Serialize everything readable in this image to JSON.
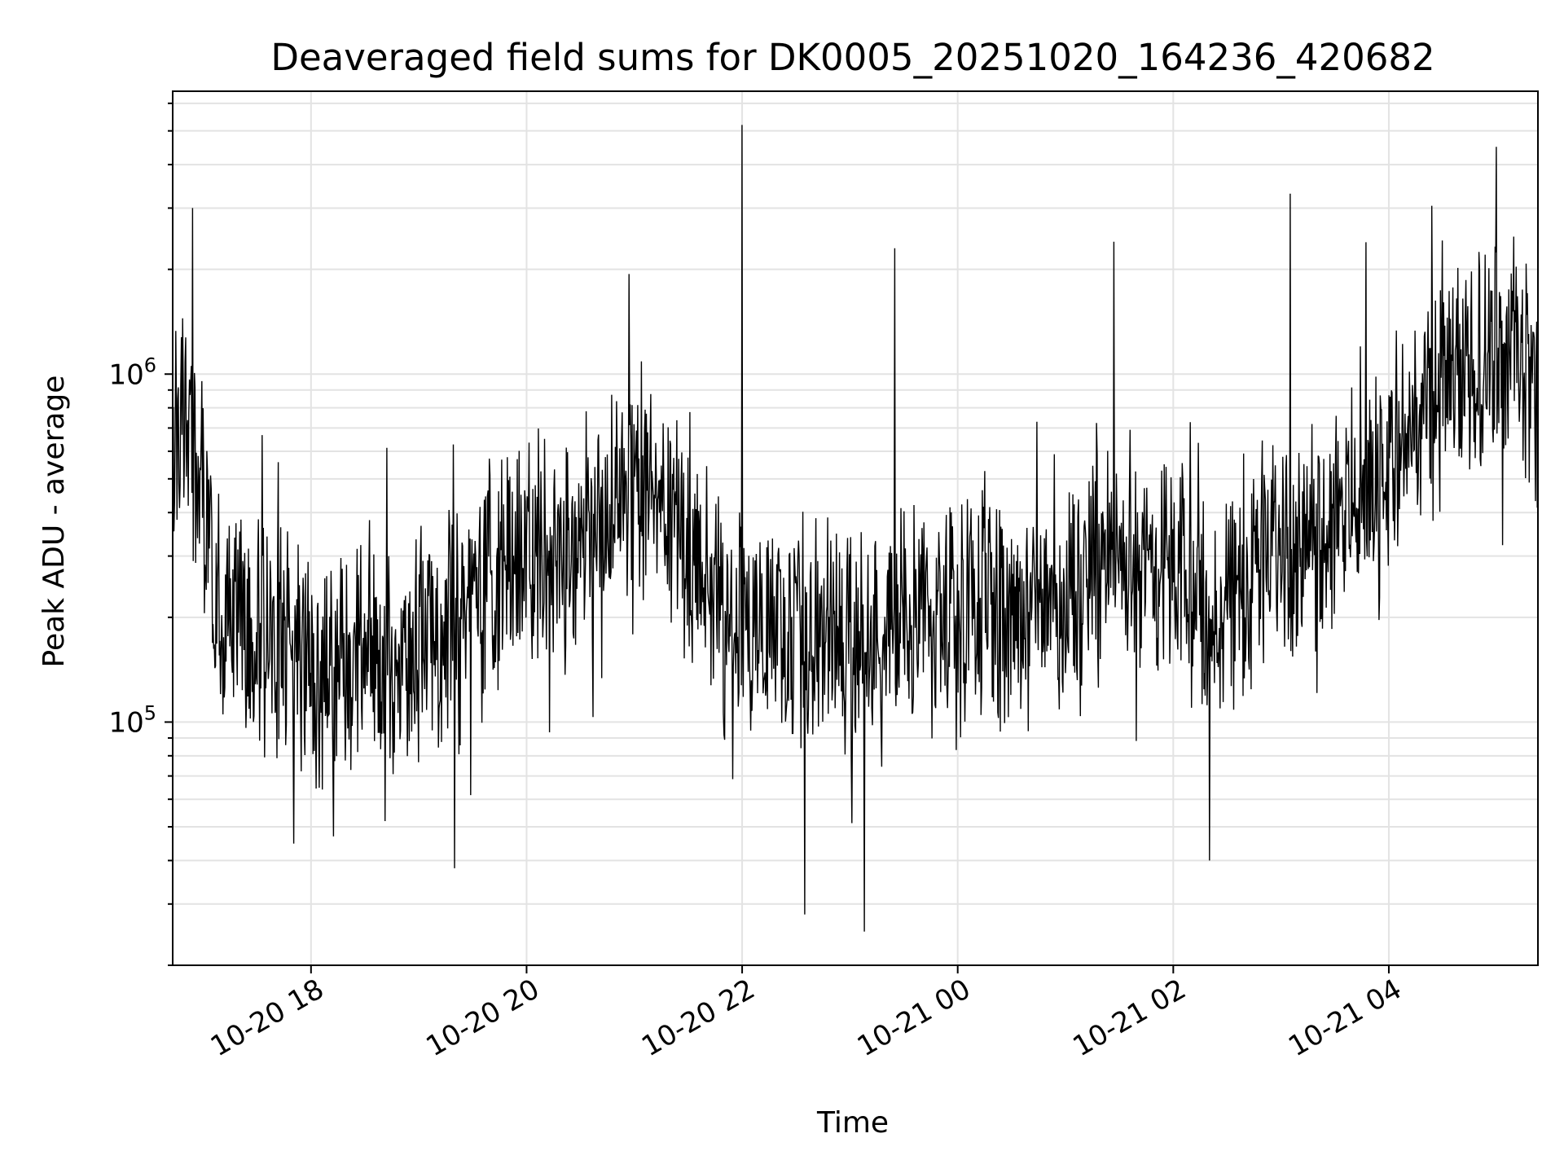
{
  "chart_data": {
    "type": "line",
    "title": "Deaveraged field sums for DK0005_20251020_164236_420682",
    "xlabel": "Time",
    "ylabel": "Peak ADU - average",
    "y_scale": "log",
    "x_tick_labels": [
      "10-20 18",
      "10-20 20",
      "10-20 22",
      "10-21 00",
      "10-21 02",
      "10-21 04"
    ],
    "x_ticks": [
      "2025-10-20 18:00",
      "2025-10-20 20:00",
      "2025-10-20 22:00",
      "2025-10-21 00:00",
      "2025-10-21 02:00",
      "2025-10-21 04:00"
    ],
    "y_ticks": [
      100000,
      1000000
    ],
    "y_tick_labels": [
      {
        "base": "10",
        "exp": "5"
      },
      {
        "base": "10",
        "exp": "6"
      }
    ],
    "xlim": [
      "2025-10-20 16:43",
      "2025-10-21 05:23"
    ],
    "ylim": [
      20000,
      6500000
    ],
    "grid": true,
    "line_color": "#000000",
    "series": [
      {
        "x": [
          "2025-10-20 16:43",
          "2025-10-20 16:50",
          "2025-10-20 17:00",
          "2025-10-20 17:10",
          "2025-10-20 17:20",
          "2025-10-20 17:30",
          "2025-10-20 17:40",
          "2025-10-20 17:50",
          "2025-10-20 18:00",
          "2025-10-20 18:15",
          "2025-10-20 18:30",
          "2025-10-20 18:45",
          "2025-10-20 19:00",
          "2025-10-20 19:15",
          "2025-10-20 19:30",
          "2025-10-20 19:45",
          "2025-10-20 20:00",
          "2025-10-20 20:15",
          "2025-10-20 20:30",
          "2025-10-20 20:45",
          "2025-10-20 21:00",
          "2025-10-20 21:15",
          "2025-10-20 21:30",
          "2025-10-20 21:45",
          "2025-10-20 22:00",
          "2025-10-20 22:15",
          "2025-10-20 22:30",
          "2025-10-20 22:45",
          "2025-10-20 23:00",
          "2025-10-20 23:15",
          "2025-10-20 23:30",
          "2025-10-20 23:45",
          "2025-10-21 00:00",
          "2025-10-21 00:15",
          "2025-10-21 00:30",
          "2025-10-21 00:45",
          "2025-10-21 01:00",
          "2025-10-21 01:15",
          "2025-10-21 01:30",
          "2025-10-21 01:45",
          "2025-10-21 02:00",
          "2025-10-21 02:15",
          "2025-10-21 02:30",
          "2025-10-21 02:45",
          "2025-10-21 03:00",
          "2025-10-21 03:15",
          "2025-10-21 03:30",
          "2025-10-21 03:45",
          "2025-10-21 04:00",
          "2025-10-21 04:15",
          "2025-10-21 04:30",
          "2025-10-21 04:45",
          "2025-10-21 05:00",
          "2025-10-21 05:15",
          "2025-10-21 05:23"
        ],
        "y": [
          600000,
          700000,
          450000,
          220000,
          200000,
          170000,
          155000,
          150000,
          145000,
          150000,
          155000,
          160000,
          170000,
          190000,
          210000,
          250000,
          300000,
          320000,
          330000,
          400000,
          480000,
          420000,
          280000,
          230000,
          200000,
          210000,
          190000,
          175000,
          160000,
          175000,
          185000,
          190000,
          200000,
          205000,
          210000,
          215000,
          230000,
          280000,
          300000,
          290000,
          250000,
          230000,
          220000,
          300000,
          330000,
          330000,
          400000,
          480000,
          550000,
          750000,
          900000,
          1000000,
          1200000,
          1100000,
          700000
        ]
      }
    ],
    "notable_peaks": [
      {
        "x": "2025-10-20 16:54",
        "y": 3000000
      },
      {
        "x": "2025-10-20 22:00",
        "y": 5200000
      },
      {
        "x": "2025-10-20 23:25",
        "y": 2300000
      },
      {
        "x": "2025-10-21 01:27",
        "y": 2400000
      },
      {
        "x": "2025-10-21 03:05",
        "y": 3300000
      },
      {
        "x": "2025-10-21 05:00",
        "y": 4500000
      }
    ],
    "notable_dips": [
      {
        "x": "2025-10-20 19:20",
        "y": 38000
      },
      {
        "x": "2025-10-20 22:35",
        "y": 28000
      },
      {
        "x": "2025-10-20 23:08",
        "y": 25000
      },
      {
        "x": "2025-10-21 02:20",
        "y": 40000
      }
    ]
  }
}
